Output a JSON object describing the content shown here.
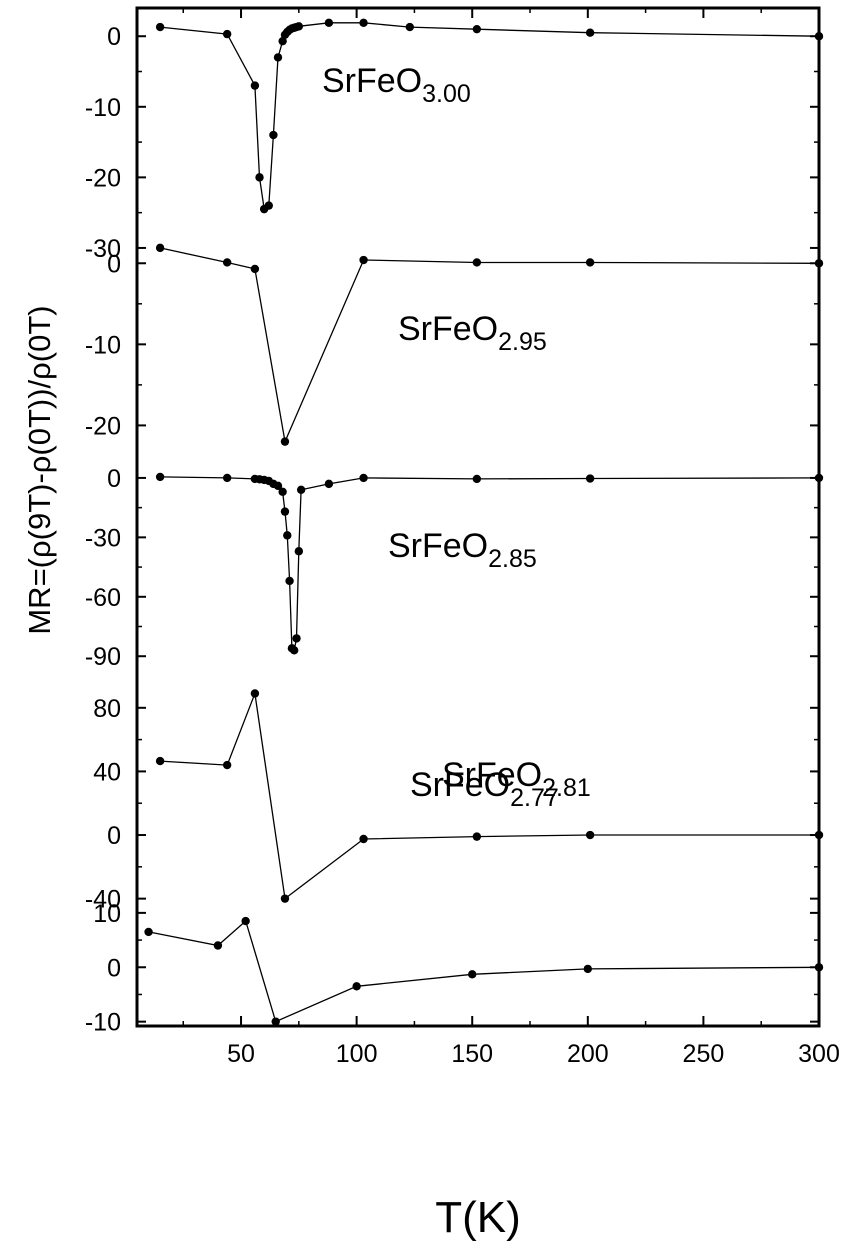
{
  "chart_data": {
    "type": "line",
    "title": "",
    "xlabel": "T(K)",
    "ylabel": "MR=(ρ(9T)-ρ(0T))/ρ(0T)",
    "xlim": [
      5,
      300
    ],
    "x_ticks": [
      "50",
      "100",
      "150",
      "200",
      "250",
      "300"
    ],
    "grid": false,
    "legend": "none",
    "panels": [
      {
        "label_main": "SrFeO",
        "label_sub": "3.00",
        "ylim": [
          -31,
          4
        ],
        "y_ticks": [
          "0",
          "-10",
          "-20",
          "-30"
        ],
        "series": {
          "x": [
            15,
            44,
            56,
            58,
            60,
            62,
            64,
            66,
            68,
            69,
            70,
            71,
            72,
            73,
            74,
            75,
            88,
            103,
            123,
            152,
            201,
            300
          ],
          "y": [
            1.3,
            0.3,
            -7,
            -20,
            -24.5,
            -24,
            -14,
            -3,
            -0.7,
            0.2,
            0.6,
            0.9,
            1.1,
            1.2,
            1.3,
            1.4,
            1.9,
            1.9,
            1.3,
            1.0,
            0.5,
            0.0
          ]
        }
      },
      {
        "label_main": "SrFeO",
        "label_sub": "2.95",
        "ylim": [
          -25.5,
          2.5
        ],
        "y_ticks": [
          "0",
          "-10",
          "-20"
        ],
        "series": {
          "x": [
            15,
            44,
            56,
            69,
            103,
            152,
            201,
            300
          ],
          "y": [
            1.9,
            0.1,
            -0.7,
            -22,
            0.4,
            0.1,
            0.1,
            0.0
          ]
        }
      },
      {
        "label_main": "SrFeO",
        "label_sub": "2.85",
        "ylim": [
          -102,
          4
        ],
        "y_ticks": [
          "0",
          "-30",
          "-60",
          "-90"
        ],
        "series": {
          "x": [
            15,
            44,
            56,
            58,
            60,
            62,
            64,
            66,
            68,
            69,
            70,
            71,
            72,
            73,
            74,
            75,
            76,
            88,
            103,
            152,
            201,
            300
          ],
          "y": [
            0.5,
            0,
            -0.5,
            -0.7,
            -1,
            -1.5,
            -3,
            -4,
            -7,
            -17,
            -29,
            -52,
            -86,
            -87,
            -81,
            -37,
            -6,
            -3,
            0,
            -0.5,
            -0.3,
            0.0
          ]
        }
      },
      {
        "label_main": "SrFeO",
        "label_sub": "2.81",
        "ylim": [
          -44,
          100
        ],
        "y_ticks": [
          "80",
          "40",
          "0",
          "-40"
        ],
        "series": {
          "x": [
            15,
            44,
            56,
            69,
            103,
            152,
            201,
            300
          ],
          "y": [
            46.5,
            44,
            89,
            -40,
            -2.5,
            -1,
            0,
            0.0
          ]
        }
      },
      {
        "label_main": "SrFeO",
        "label_sub": "2.77",
        "ylim": [
          -10.8,
          12
        ],
        "y_ticks": [
          "10",
          "0",
          "-10"
        ],
        "series": {
          "x": [
            10,
            40,
            52,
            65,
            100,
            150,
            200,
            300
          ],
          "y": [
            6.5,
            4,
            8.5,
            -10,
            -3.5,
            -1.3,
            -0.3,
            0.0
          ]
        }
      }
    ]
  }
}
